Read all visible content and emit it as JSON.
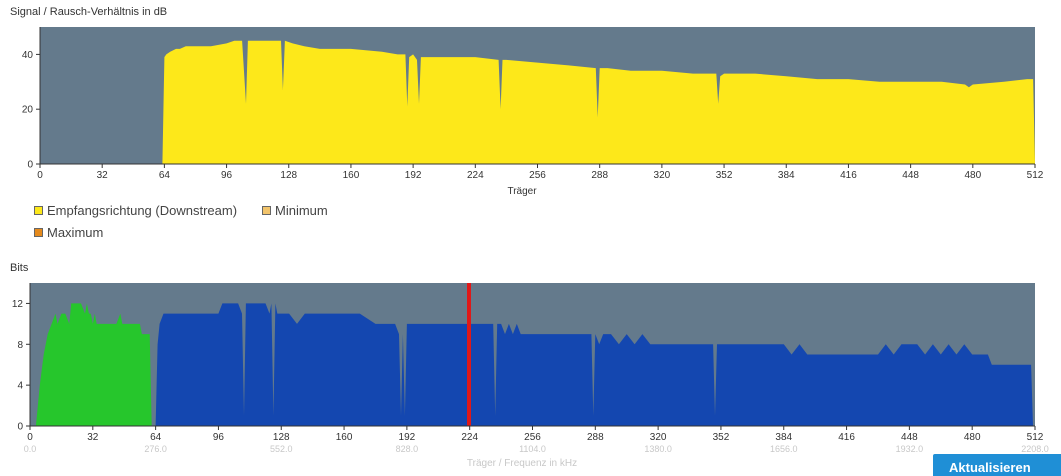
{
  "chart1": {
    "title": "Signal / Rausch-Verhältnis in dB",
    "xlabel": "Träger"
  },
  "chart2": {
    "title": "Bits",
    "xlabel": "Träger / Frequenz in kHz"
  },
  "legend": {
    "downstream": "Empfangsrichtung (Downstream)",
    "minimum": "Minimum",
    "maximum": "Maximum"
  },
  "button": {
    "label": "Aktualisieren"
  },
  "colors": {
    "plot_bg": "#647a8c",
    "downstream": "#fde81a",
    "minimum": "#f2c46b",
    "maximum": "#e58a1c",
    "upstream_bits": "#26c62c",
    "downstream_bits": "#1447b0",
    "pilot": "#e01818",
    "button": "#1f8fd6"
  },
  "chart_data": [
    {
      "type": "area",
      "title": "Signal / Rausch-Verhältnis in dB",
      "xlabel": "Träger",
      "ylabel": "",
      "xlim": [
        0,
        512
      ],
      "ylim": [
        0,
        50
      ],
      "xticks": [
        0,
        32,
        64,
        96,
        128,
        160,
        192,
        224,
        256,
        288,
        320,
        352,
        384,
        416,
        448,
        480,
        512
      ],
      "yticks": [
        0,
        20,
        40
      ],
      "series": [
        {
          "name": "Empfangsrichtung (Downstream)",
          "x": [
            0,
            63,
            64,
            65,
            67,
            70,
            72,
            75,
            80,
            88,
            96,
            100,
            104,
            106,
            107,
            108,
            112,
            118,
            124,
            125,
            126,
            130,
            136,
            144,
            160,
            176,
            184,
            188,
            189,
            190,
            192,
            194,
            195,
            196,
            200,
            208,
            224,
            236,
            237,
            238,
            240,
            256,
            272,
            286,
            287,
            288,
            292,
            304,
            320,
            336,
            348,
            349,
            350,
            352,
            368,
            384,
            400,
            416,
            432,
            448,
            464,
            476,
            478,
            480,
            496,
            508,
            510,
            511,
            512
          ],
          "values": [
            0,
            0,
            39,
            40,
            41,
            42,
            42,
            43,
            43,
            43,
            44,
            45,
            45,
            22,
            45,
            45,
            45,
            45,
            45,
            27,
            45,
            44,
            43,
            42,
            42,
            41,
            40,
            40,
            21,
            39,
            40,
            38,
            22,
            39,
            39,
            39,
            39,
            38,
            20,
            38,
            38,
            37,
            36,
            35,
            17,
            35,
            35,
            34,
            34,
            33,
            33,
            22,
            32,
            33,
            33,
            32,
            31,
            31,
            30,
            30,
            30,
            29,
            28,
            29,
            30,
            31,
            31,
            31,
            0
          ]
        }
      ],
      "legend": [
        "Empfangsrichtung (Downstream)",
        "Minimum",
        "Maximum"
      ],
      "legend_position": "bottom-left",
      "grid": false
    },
    {
      "type": "area",
      "title": "Bits",
      "xlabel": "Träger / Frequenz in kHz",
      "ylabel": "",
      "xlim": [
        0,
        512
      ],
      "ylim": [
        0,
        14
      ],
      "xticks": [
        0,
        32,
        64,
        96,
        128,
        160,
        192,
        224,
        256,
        288,
        320,
        352,
        384,
        416,
        448,
        480,
        512
      ],
      "yticks": [
        0,
        4,
        8,
        12
      ],
      "frequency_ticks": [
        "0.0",
        "276.0",
        "552.0",
        "828.0",
        "1104.0",
        "1380.0",
        "1656.0",
        "1932.0",
        "2208.0"
      ],
      "pilot_carrier": 224,
      "series": [
        {
          "name": "upstream",
          "x": [
            3,
            5,
            7,
            9,
            11,
            13,
            14,
            16,
            18,
            20,
            21,
            22,
            24,
            26,
            28,
            29,
            30,
            31,
            32,
            33,
            34,
            36,
            38,
            40,
            42,
            44,
            46,
            47,
            48,
            50,
            52,
            54,
            56,
            57,
            58,
            60,
            61,
            62
          ],
          "values": [
            0,
            4,
            7,
            9,
            10,
            11,
            10,
            11,
            11,
            10,
            12,
            12,
            12,
            12,
            11,
            12,
            11,
            11,
            10,
            11,
            10,
            10,
            10,
            10,
            10,
            10,
            11,
            10,
            10,
            10,
            10,
            10,
            10,
            9,
            9,
            9,
            9,
            0
          ]
        },
        {
          "name": "downstream",
          "x": [
            64,
            65,
            66,
            68,
            70,
            72,
            76,
            80,
            88,
            96,
            98,
            100,
            104,
            106,
            108,
            109,
            110,
            112,
            116,
            120,
            122,
            123,
            124,
            125,
            126,
            127,
            128,
            132,
            136,
            140,
            144,
            152,
            160,
            168,
            176,
            182,
            186,
            188,
            189,
            190,
            191,
            192,
            193,
            194,
            195,
            196,
            200,
            208,
            216,
            224,
            232,
            236,
            237,
            238,
            240,
            242,
            244,
            246,
            248,
            250,
            252,
            256,
            264,
            272,
            280,
            284,
            286,
            287,
            288,
            290,
            292,
            296,
            300,
            304,
            308,
            312,
            316,
            320,
            328,
            336,
            344,
            348,
            349,
            350,
            352,
            360,
            368,
            376,
            384,
            388,
            392,
            396,
            400,
            408,
            416,
            424,
            432,
            436,
            440,
            444,
            448,
            452,
            456,
            460,
            464,
            468,
            472,
            476,
            480,
            484,
            488,
            490,
            492,
            496,
            500,
            504,
            508,
            510,
            511,
            512
          ],
          "values": [
            0,
            8,
            10,
            11,
            11,
            11,
            11,
            11,
            11,
            11,
            12,
            12,
            12,
            12,
            11,
            1,
            12,
            12,
            12,
            12,
            11,
            12,
            1,
            12,
            11,
            11,
            11,
            11,
            10,
            11,
            11,
            11,
            11,
            11,
            10,
            10,
            10,
            9,
            1,
            9,
            1,
            10,
            10,
            10,
            10,
            10,
            10,
            10,
            10,
            10,
            10,
            10,
            1,
            10,
            10,
            9,
            10,
            9,
            10,
            9,
            9,
            9,
            9,
            9,
            9,
            9,
            9,
            1,
            9,
            8,
            9,
            9,
            8,
            9,
            8,
            9,
            8,
            8,
            8,
            8,
            8,
            8,
            1,
            8,
            8,
            8,
            8,
            8,
            8,
            7,
            8,
            7,
            7,
            7,
            7,
            7,
            7,
            8,
            7,
            8,
            8,
            8,
            7,
            8,
            7,
            8,
            7,
            8,
            7,
            7,
            7,
            6,
            6,
            6,
            6,
            6,
            6,
            6,
            0,
            0
          ]
        }
      ],
      "grid": false
    }
  ]
}
